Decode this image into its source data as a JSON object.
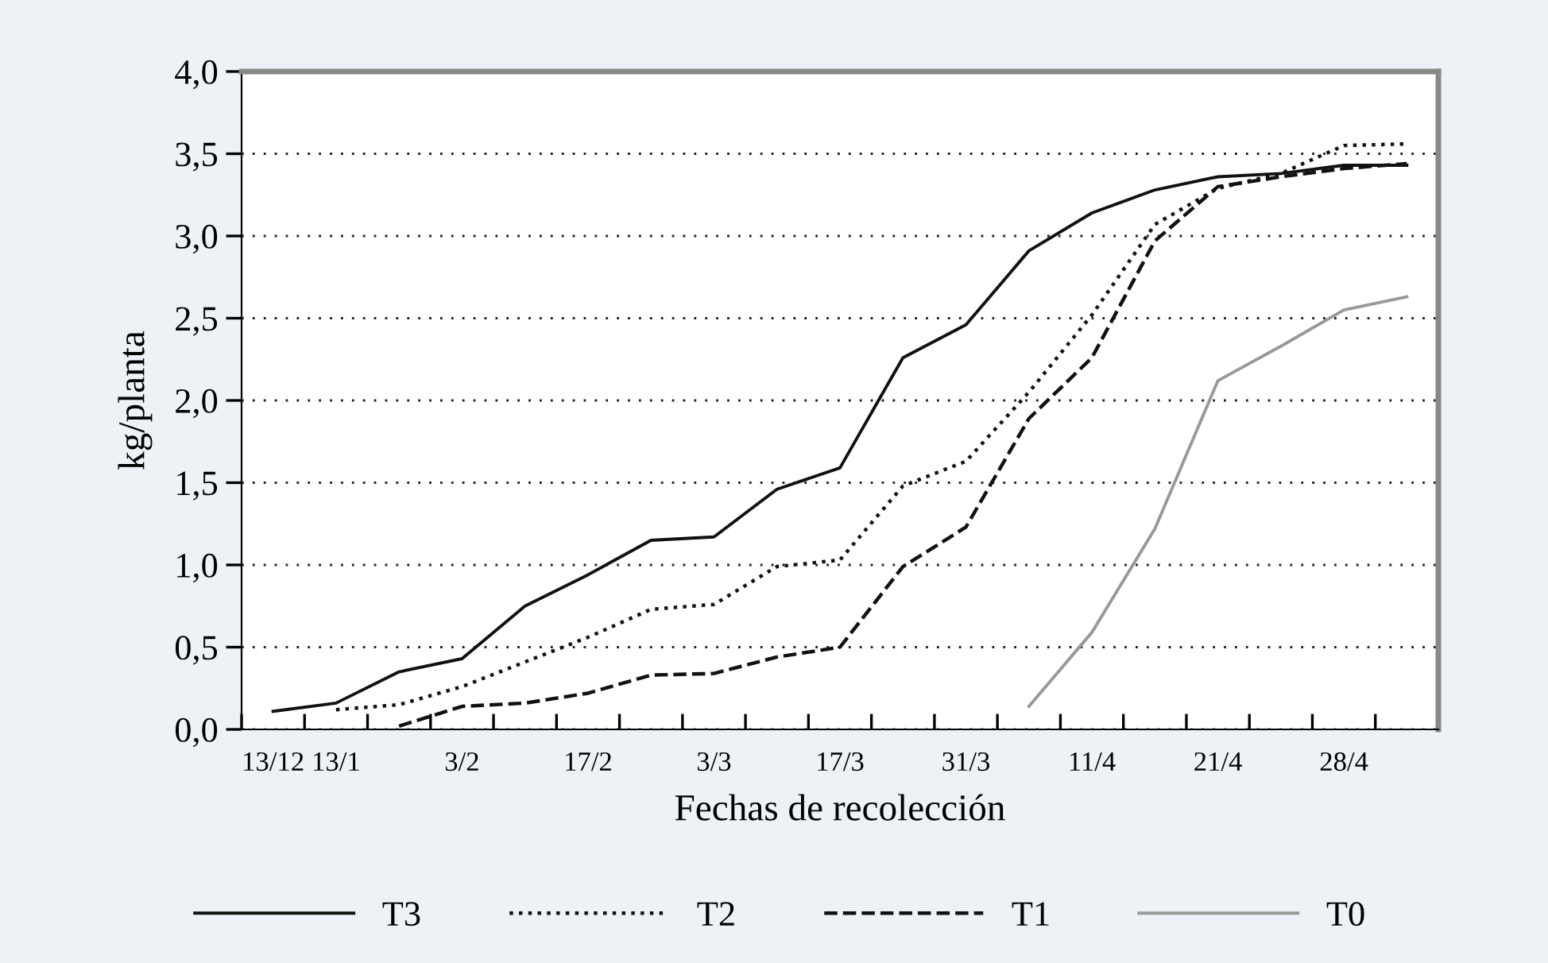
{
  "chart_data": {
    "type": "line",
    "xlabel": "Fechas de recolección",
    "ylabel": "kg/planta",
    "categories": [
      "13/12",
      "13/1",
      null,
      "3/2",
      null,
      "17/2",
      null,
      "3/3",
      null,
      "17/3",
      null,
      "31/3",
      null,
      "11/4",
      null,
      "21/4",
      null,
      "28/4",
      null
    ],
    "series": [
      {
        "name": "T3",
        "color": "#111111",
        "line_style": "solid",
        "values": [
          0.11,
          0.16,
          0.35,
          0.43,
          0.75,
          0.94,
          1.15,
          1.17,
          1.46,
          1.59,
          2.26,
          2.46,
          2.91,
          3.14,
          3.28,
          3.36,
          3.38,
          3.43,
          3.43
        ]
      },
      {
        "name": "T2",
        "color": "#111111",
        "line_style": "dotted",
        "values": [
          null,
          0.12,
          0.15,
          0.26,
          0.41,
          0.56,
          0.73,
          0.76,
          0.99,
          1.03,
          1.48,
          1.63,
          2.05,
          2.52,
          3.07,
          3.29,
          3.38,
          3.55,
          3.56
        ]
      },
      {
        "name": "T1",
        "color": "#111111",
        "line_style": "dashed",
        "values": [
          null,
          null,
          0.02,
          0.14,
          0.16,
          0.22,
          0.33,
          0.34,
          0.44,
          0.5,
          0.99,
          1.23,
          1.89,
          2.26,
          2.97,
          3.3,
          3.36,
          3.41,
          3.44
        ]
      },
      {
        "name": "T0",
        "color": "#999999",
        "line_style": "solid",
        "values": [
          null,
          null,
          null,
          null,
          null,
          null,
          null,
          null,
          null,
          null,
          null,
          null,
          0.14,
          0.59,
          1.22,
          2.12,
          2.33,
          2.55,
          2.63
        ]
      }
    ],
    "ylim": [
      0,
      4
    ],
    "yticks": [
      {
        "value": 0,
        "label": "0,0"
      },
      {
        "value": 0.5,
        "label": "0,5"
      },
      {
        "value": 1,
        "label": "1,0"
      },
      {
        "value": 1.5,
        "label": "1,5"
      },
      {
        "value": 2,
        "label": "2,0"
      },
      {
        "value": 2.5,
        "label": "2,5"
      },
      {
        "value": 3,
        "label": "3,0"
      },
      {
        "value": 3.5,
        "label": "3,5"
      },
      {
        "value": 4,
        "label": "4,0"
      }
    ],
    "grid": "y",
    "legend": "bottom",
    "marker": "none"
  }
}
